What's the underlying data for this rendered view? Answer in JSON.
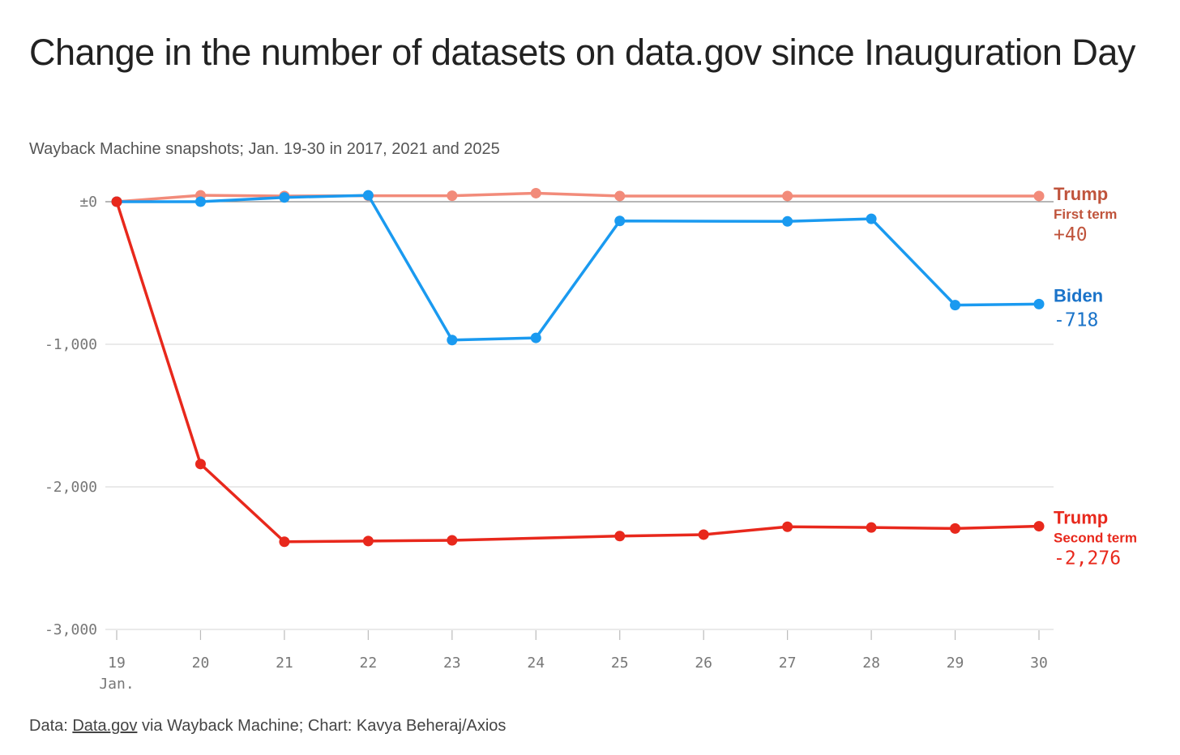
{
  "title": "Change in the number of datasets on data.gov since Inauguration Day",
  "subtitle": "Wayback Machine snapshots; Jan. 19-30 in 2017, 2021 and 2025",
  "source": {
    "prefix": "Data: ",
    "link": "Data.gov",
    "suffix": " via Wayback Machine; Chart: Kavya Beheraj/Axios"
  },
  "chart_data": {
    "type": "line",
    "title": "Change in the number of datasets on data.gov since Inauguration Day",
    "x": [
      19,
      20,
      21,
      22,
      23,
      24,
      25,
      26,
      27,
      28,
      29,
      30
    ],
    "x_tick_labels": [
      "19",
      "20",
      "21",
      "22",
      "23",
      "24",
      "25",
      "26",
      "27",
      "28",
      "29",
      "30"
    ],
    "x_sublabel": "Jan.",
    "y_ticks": [
      0,
      -1000,
      -2000,
      -3000
    ],
    "y_tick_labels": [
      "±0",
      "-1,000",
      "-2,000",
      "-3,000"
    ],
    "ylim": [
      -3000,
      0
    ],
    "xlabel": "",
    "ylabel": "",
    "series": [
      {
        "id": "trump1",
        "name": "Trump",
        "sublabel": "First term",
        "end_label": "+40",
        "color": "#f28b7a",
        "label_color": "#c0543c",
        "x": [
          19,
          20,
          21,
          22,
          23,
          24,
          25,
          27,
          30
        ],
        "values": [
          0,
          45,
          40,
          42,
          42,
          60,
          40,
          40,
          40
        ]
      },
      {
        "id": "biden",
        "name": "Biden",
        "sublabel": "",
        "end_label": "-718",
        "color": "#1a9af0",
        "label_color": "#1a73c9",
        "x": [
          19,
          20,
          21,
          22,
          23,
          24,
          25,
          27,
          28,
          29,
          30
        ],
        "values": [
          0,
          0,
          30,
          45,
          -970,
          -955,
          -135,
          -138,
          -120,
          -725,
          -718
        ]
      },
      {
        "id": "trump2",
        "name": "Trump",
        "sublabel": "Second term",
        "end_label": "-2,276",
        "color": "#e8281c",
        "label_color": "#e8281c",
        "x": [
          19,
          20,
          21,
          22,
          23,
          25,
          26,
          27,
          28,
          29,
          30
        ],
        "values": [
          0,
          -1840,
          -2385,
          -2380,
          -2375,
          -2345,
          -2335,
          -2280,
          -2285,
          -2292,
          -2276
        ]
      }
    ]
  }
}
